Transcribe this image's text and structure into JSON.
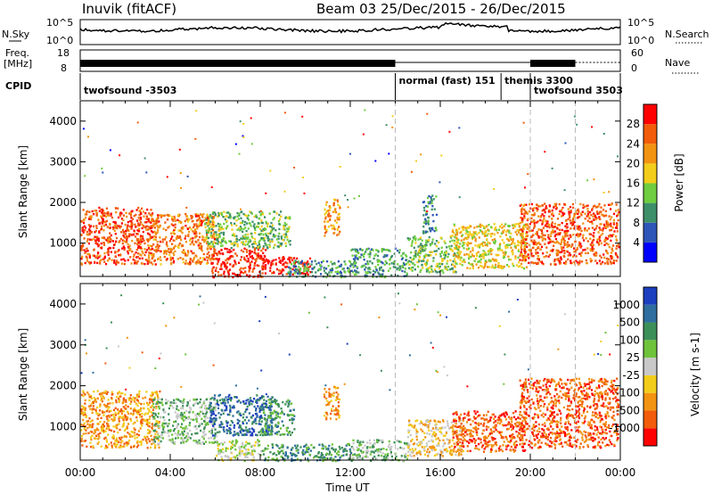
{
  "header": {
    "station": "Inuvik (fitACF)",
    "beam_date": "Beam 03  25/Dec/2015 - 26/Dec/2015"
  },
  "panels": {
    "nsky_label": "N.Sky",
    "nsky_ticks": [
      "10^5",
      "10^0"
    ],
    "nsearch_label": "N.Search",
    "nsearch_ticks": [
      "10^5",
      "10^0"
    ],
    "freq_label": "Freq.",
    "freq_unit": "[MHz]",
    "freq_ticks": [
      "18",
      "8"
    ],
    "nave_label": "Nave",
    "nave_ticks": [
      "60",
      "0"
    ],
    "cpid_label": "CPID",
    "cpid_segments": [
      {
        "label": "twofsound -3503",
        "start_hr": 0,
        "end_hr": 14
      },
      {
        "label": "normal (fast) 151",
        "start_hr": 14,
        "end_hr": 18.7
      },
      {
        "label": "themis 3300",
        "start_hr": 18.7,
        "end_hr": 20
      },
      {
        "label": "twofsound 3503",
        "start_hr": 20,
        "end_hr": 24
      }
    ]
  },
  "chart_data": [
    {
      "type": "heatmap",
      "name": "power",
      "ylabel": "Slant Range [km]",
      "xlabel": "",
      "x_ticks": [
        "00:00",
        "04:00",
        "08:00",
        "12:00",
        "16:00",
        "20:00",
        "00:00"
      ],
      "y_ticks": [
        1000,
        2000,
        3000,
        4000
      ],
      "xlim_hr": [
        0,
        24
      ],
      "ylim_km": [
        180,
        4500
      ],
      "dashed_lines_hr": [
        14,
        20,
        22
      ],
      "colorbar_label": "Power [dB]",
      "colorbar_ticks": [
        4,
        8,
        12,
        16,
        20,
        24,
        28
      ],
      "colorbar_range": [
        0,
        32
      ],
      "colorbar_colors": [
        "#0000ff",
        "#2e56b8",
        "#3d8f6a",
        "#6fcd3f",
        "#f2cd1c",
        "#f29312",
        "#f25c0a",
        "#ff0000"
      ],
      "clusters": [
        {
          "t0": 0,
          "t1": 3.2,
          "r0": 500,
          "r1": 1900,
          "val": 27
        },
        {
          "t0": 3.0,
          "t1": 6.0,
          "r0": 500,
          "r1": 1750,
          "val": 24
        },
        {
          "t0": 5.5,
          "t1": 9.3,
          "r0": 900,
          "r1": 1800,
          "val": 13
        },
        {
          "t0": 5.8,
          "t1": 8.2,
          "r0": 180,
          "r1": 900,
          "val": 29
        },
        {
          "t0": 8.0,
          "t1": 10.2,
          "r0": 250,
          "r1": 700,
          "val": 30
        },
        {
          "t0": 9.2,
          "t1": 12.0,
          "r0": 180,
          "r1": 600,
          "val": 10
        },
        {
          "t0": 10.8,
          "t1": 11.5,
          "r0": 1200,
          "r1": 2100,
          "val": 22
        },
        {
          "t0": 12.0,
          "t1": 14.5,
          "r0": 180,
          "r1": 900,
          "val": 11
        },
        {
          "t0": 14.5,
          "t1": 16.8,
          "r0": 300,
          "r1": 1200,
          "val": 14
        },
        {
          "t0": 15.2,
          "t1": 15.8,
          "r0": 1250,
          "r1": 2200,
          "val": 9
        },
        {
          "t0": 16.5,
          "t1": 19.8,
          "r0": 400,
          "r1": 1500,
          "val": 18
        },
        {
          "t0": 19.5,
          "t1": 23.9,
          "r0": 500,
          "r1": 2000,
          "val": 26
        }
      ]
    },
    {
      "type": "heatmap",
      "name": "velocity",
      "ylabel": "Slant Range [km]",
      "xlabel": "Time UT",
      "x_ticks": [
        "00:00",
        "04:00",
        "08:00",
        "12:00",
        "16:00",
        "20:00",
        "00:00"
      ],
      "y_ticks": [
        1000,
        2000,
        3000,
        4000
      ],
      "xlim_hr": [
        0,
        24
      ],
      "ylim_km": [
        180,
        4500
      ],
      "dashed_lines_hr": [
        14,
        20,
        22
      ],
      "colorbar_label": "Velocity [m s-1]",
      "colorbar_ticks": [
        "1000",
        "500",
        "100",
        "25",
        "-25",
        "-100",
        "-500",
        "-1000"
      ],
      "colorbar_colors": [
        "#1c3fbf",
        "#2f6e9e",
        "#3d8f5a",
        "#6fc33b",
        "#c8c8c8",
        "#f2cd1c",
        "#f29312",
        "#f25c0a",
        "#ff0000"
      ],
      "clusters": [
        {
          "t0": 0,
          "t1": 3.5,
          "r0": 500,
          "r1": 1900,
          "val": 6
        },
        {
          "t0": 3.2,
          "t1": 6.0,
          "r0": 600,
          "r1": 1700,
          "val": 3
        },
        {
          "t0": 5.7,
          "t1": 8.5,
          "r0": 800,
          "r1": 1800,
          "val": 1
        },
        {
          "t0": 8.0,
          "t1": 9.5,
          "r0": 800,
          "r1": 1700,
          "val": 2
        },
        {
          "t0": 6.0,
          "t1": 8.0,
          "r0": 180,
          "r1": 700,
          "val": 4
        },
        {
          "t0": 8.0,
          "t1": 12.0,
          "r0": 180,
          "r1": 600,
          "val": 2
        },
        {
          "t0": 10.8,
          "t1": 11.5,
          "r0": 1200,
          "r1": 2000,
          "val": 6
        },
        {
          "t0": 12.0,
          "t1": 14.5,
          "r0": 180,
          "r1": 700,
          "val": 3
        },
        {
          "t0": 14.5,
          "t1": 17.0,
          "r0": 300,
          "r1": 1200,
          "val": 5
        },
        {
          "t0": 16.5,
          "t1": 19.8,
          "r0": 400,
          "r1": 1400,
          "val": 7
        },
        {
          "t0": 19.5,
          "t1": 23.9,
          "r0": 500,
          "r1": 2200,
          "val": 7
        }
      ]
    }
  ]
}
